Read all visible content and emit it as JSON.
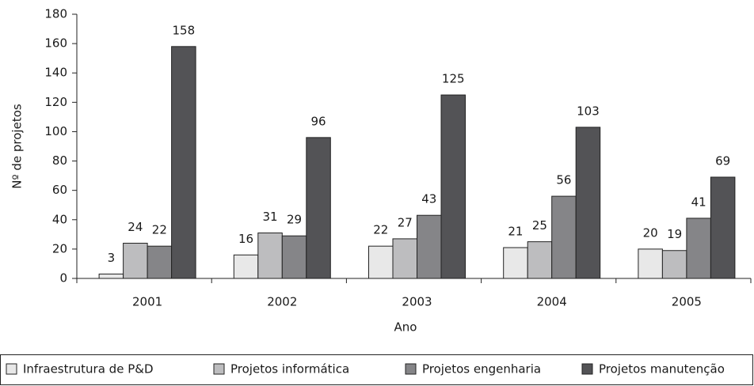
{
  "chart_data": {
    "type": "bar",
    "xlabel": "Ano",
    "ylabel": "Nº de projetos",
    "categories": [
      "2001",
      "2002",
      "2003",
      "2004",
      "2005"
    ],
    "series": [
      {
        "name": "Infraestrutura de P&D",
        "color": "#e8e8e8",
        "values": [
          3,
          16,
          22,
          21,
          20
        ]
      },
      {
        "name": "Projetos informática",
        "color": "#bdbdbf",
        "values": [
          24,
          31,
          27,
          25,
          19
        ]
      },
      {
        "name": "Projetos engenharia",
        "color": "#858588",
        "values": [
          22,
          29,
          43,
          56,
          41
        ]
      },
      {
        "name": "Projetos manutenção",
        "color": "#535356",
        "values": [
          158,
          96,
          125,
          103,
          69
        ]
      }
    ],
    "ylim": [
      0,
      180
    ],
    "yticks": [
      0,
      20,
      40,
      60,
      80,
      100,
      120,
      140,
      160,
      180
    ],
    "legend": "bottom"
  }
}
